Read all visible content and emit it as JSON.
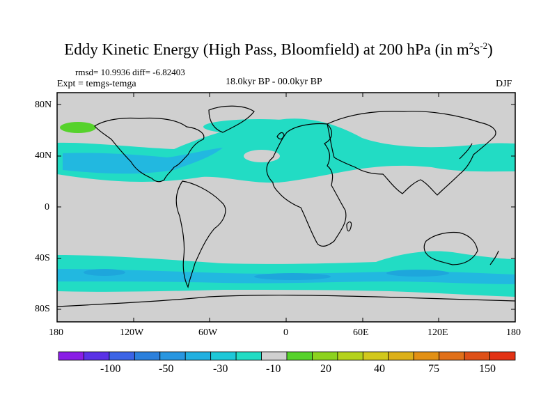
{
  "title": {
    "main": "Eddy Kinetic Energy (High Pass, Bloomfield) at 200 hPa (in m",
    "sup1": "2",
    "mid": "s",
    "sup2": "-2",
    "end": ")"
  },
  "stats": "rmsd= 10.9936 diff= -6.82403",
  "experiment": "Expt = temgs-temga",
  "period": "18.0kyr BP - 00.0kyr BP",
  "season": "DJF",
  "lat_labels": [
    "80N",
    "40N",
    "0",
    "40S",
    "80S"
  ],
  "lon_labels": [
    "180",
    "120W",
    "60W",
    "0",
    "60E",
    "120E",
    "180"
  ],
  "colorbar": {
    "colors": [
      "#8a1ee6",
      "#5a32e6",
      "#3c64e6",
      "#2c80dc",
      "#2896e0",
      "#22b0e0",
      "#1ec8d8",
      "#22dcc4",
      "#d0d0d0",
      "#56d22c",
      "#8cd21e",
      "#b4d21c",
      "#d2c81c",
      "#dcb01a",
      "#e29014",
      "#e0701a",
      "#de5018",
      "#e23214"
    ],
    "labels": [
      "-100",
      "-50",
      "-30",
      "-10",
      "20",
      "40",
      "75",
      "150"
    ]
  },
  "fill_colors": {
    "ocean": "#d0d0d0",
    "light_band": "#22dcc4",
    "dark_band": "#1ec8d8",
    "core": "#22b8e0",
    "positive": "#56d22c"
  }
}
